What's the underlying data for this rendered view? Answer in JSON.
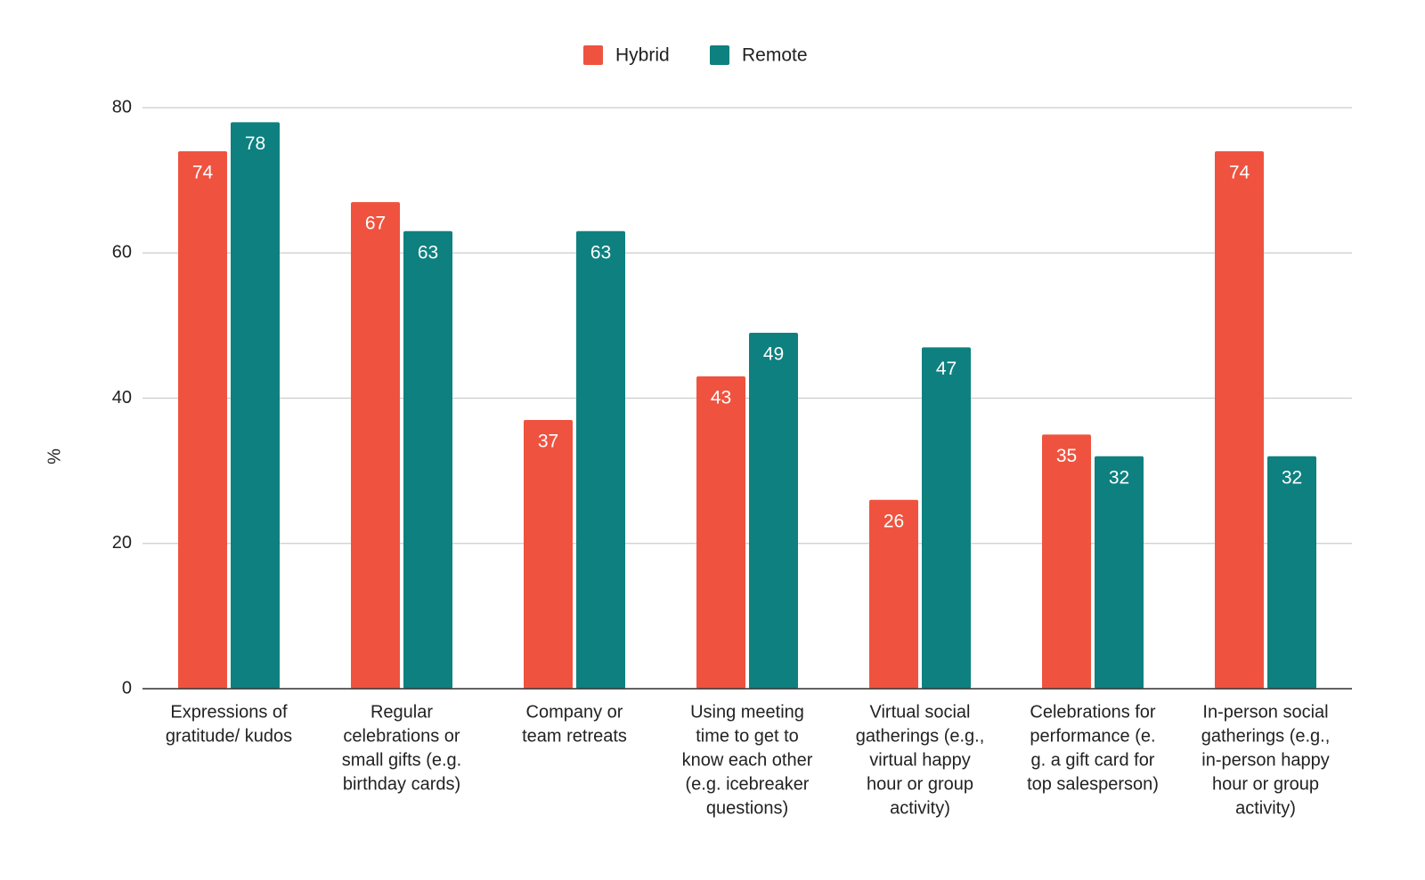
{
  "chart_data": {
    "type": "bar",
    "y_label": "%",
    "categories": [
      [
        "Expressions of",
        "gratitude/ kudos"
      ],
      [
        "Regular",
        "celebrations or",
        "small gifts (e.g.",
        "birthday cards)"
      ],
      [
        "Company or",
        "team retreats"
      ],
      [
        "Using meeting",
        "time to get to",
        "know each other",
        "(e.g. icebreaker",
        "questions)"
      ],
      [
        "Virtual social",
        "gatherings (e.g.,",
        "virtual happy",
        "hour or group",
        "activity)"
      ],
      [
        "Celebrations for",
        "performance (e.",
        "g. a gift card for",
        "top salesperson)"
      ],
      [
        "In-person social",
        "gatherings (e.g.,",
        "in-person happy",
        "hour or group",
        "activity)"
      ]
    ],
    "series": [
      {
        "name": "Hybrid",
        "color": "#ef533f",
        "values": [
          74,
          67,
          37,
          43,
          26,
          35,
          74
        ]
      },
      {
        "name": "Remote",
        "color": "#0e8080",
        "values": [
          78,
          63,
          63,
          49,
          47,
          32,
          32
        ]
      }
    ],
    "ylim": [
      0,
      80
    ],
    "yticks": [
      0,
      20,
      40,
      60,
      80
    ],
    "grid": true,
    "legend": "top"
  }
}
